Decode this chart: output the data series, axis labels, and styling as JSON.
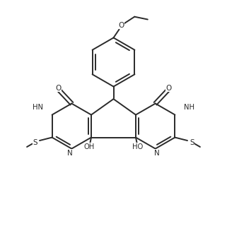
{
  "bg_color": "#ffffff",
  "line_color": "#2a2a2a",
  "line_width": 1.4,
  "fig_width": 3.21,
  "fig_height": 3.2,
  "dpi": 100,
  "xlim": [
    0.0,
    1.0
  ],
  "ylim": [
    0.05,
    1.05
  ]
}
